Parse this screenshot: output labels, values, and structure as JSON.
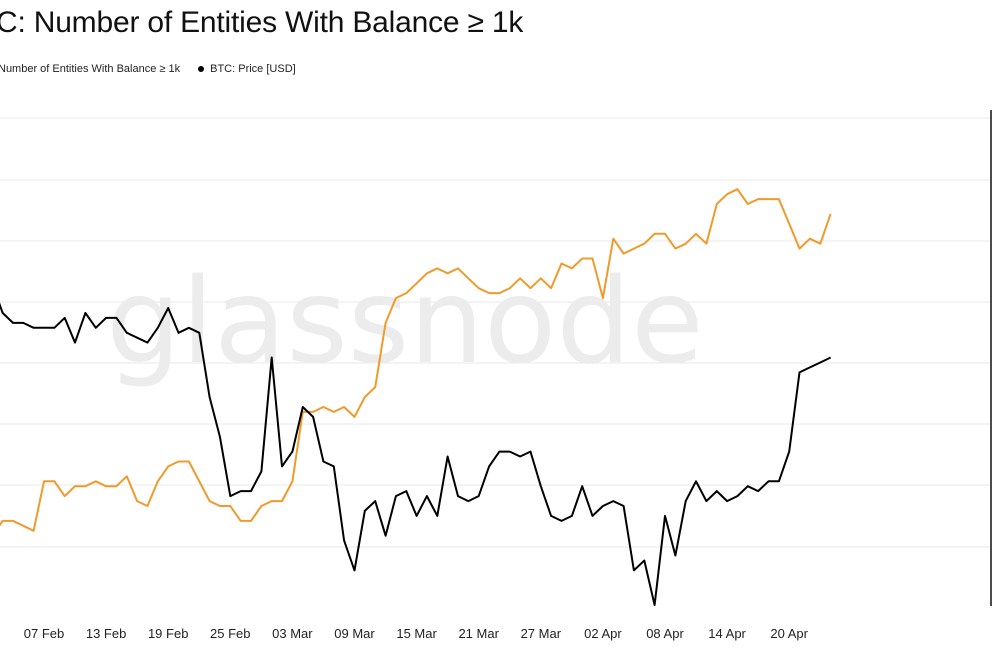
{
  "header": {
    "title": "C: Number of Entities With Balance ≥ 1k"
  },
  "legend": {
    "series_a": "Number of Entities With Balance ≥ 1k",
    "series_b": "BTC: Price [USD]"
  },
  "watermark": "glassnode",
  "colors": {
    "entities": "#f09a2b",
    "price": "#000000",
    "grid": "#e9e9e9"
  },
  "chart_data": {
    "type": "line",
    "title": "C: Number of Entities With Balance ≥ 1k",
    "xlabel": "",
    "ylabel": "",
    "grid": true,
    "legend_position": "top-left",
    "x_tick_labels": [
      "07 Feb",
      "13 Feb",
      "19 Feb",
      "25 Feb",
      "03 Mar",
      "09 Mar",
      "15 Mar",
      "21 Mar",
      "27 Mar",
      "02 Apr",
      "08 Apr",
      "14 Apr",
      "20 Apr"
    ],
    "x_start": "02 Feb",
    "y_range": [
      0,
      100
    ],
    "series": [
      {
        "name": "Number of Entities With Balance ≥ 1k",
        "color": "#f09a2b",
        "values": [
          14,
          17,
          17,
          16,
          15,
          25,
          25,
          22,
          24,
          24,
          25,
          24,
          24,
          26,
          21,
          20,
          25,
          28,
          29,
          29,
          25,
          21,
          20,
          20,
          17,
          17,
          20,
          21,
          21,
          25,
          39,
          39,
          40,
          39,
          40,
          38,
          42,
          44,
          57,
          62,
          63,
          65,
          67,
          68,
          67,
          68,
          66,
          64,
          63,
          63,
          64,
          66,
          64,
          66,
          64,
          69,
          68,
          70,
          70,
          62,
          74,
          71,
          72,
          73,
          75,
          75,
          72,
          73,
          75,
          73,
          81,
          83,
          84,
          81,
          82,
          82,
          82,
          77,
          72,
          74,
          73,
          79
        ]
      },
      {
        "name": "BTC: Price [USD]",
        "color": "#000000",
        "values": [
          65,
          59,
          57,
          57,
          56,
          56,
          56,
          58,
          53,
          59,
          56,
          58,
          58,
          55,
          54,
          53,
          56,
          60,
          55,
          56,
          55,
          42,
          34,
          22,
          23,
          23,
          27,
          50,
          28,
          31,
          40,
          38,
          29,
          28,
          13,
          7,
          19,
          21,
          14,
          22,
          23,
          18,
          22,
          18,
          30,
          22,
          21,
          22,
          28,
          31,
          31,
          30,
          31,
          24,
          18,
          17,
          18,
          24,
          18,
          20,
          21,
          20,
          7,
          9,
          0,
          18,
          10,
          21,
          25,
          21,
          23,
          21,
          22,
          24,
          23,
          25,
          25,
          31,
          47,
          48,
          49,
          50
        ]
      }
    ]
  }
}
